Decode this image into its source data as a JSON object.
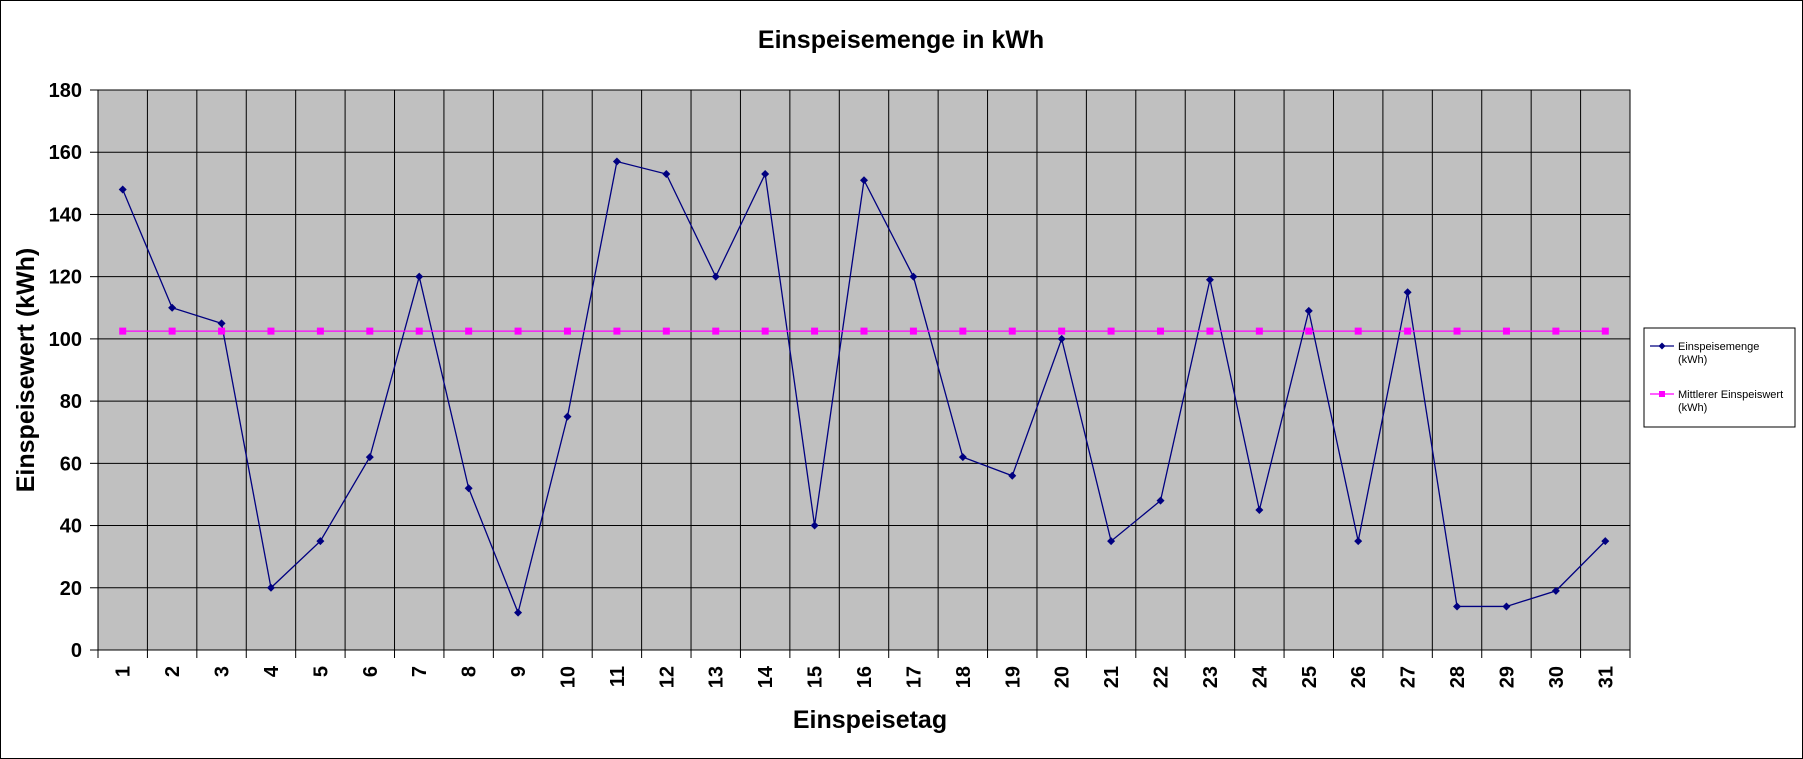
{
  "chart_data": {
    "type": "line",
    "title": "Einspeisemenge in kWh",
    "xlabel": "Einspeisetag",
    "ylabel": "Einspeisewert  (kWh)",
    "ylim": [
      0,
      180
    ],
    "yticks": [
      0,
      20,
      40,
      60,
      80,
      100,
      120,
      140,
      160,
      180
    ],
    "categories": [
      "1",
      "2",
      "3",
      "4",
      "5",
      "6",
      "7",
      "8",
      "9",
      "10",
      "11",
      "12",
      "13",
      "14",
      "15",
      "16",
      "17",
      "18",
      "19",
      "20",
      "21",
      "22",
      "23",
      "24",
      "25",
      "26",
      "27",
      "28",
      "29",
      "30",
      "31"
    ],
    "grid": true,
    "plot_background": "#c0c0c0",
    "legend_position": "right",
    "series": [
      {
        "name": "Einspeisemenge (kWh)",
        "legend_lines": [
          "Einspeisemenge",
          "(kWh)"
        ],
        "color": "#000080",
        "marker": "diamond",
        "values": [
          148,
          110,
          105,
          20,
          35,
          62,
          120,
          52,
          12,
          75,
          157,
          153,
          120,
          153,
          40,
          151,
          120,
          62,
          56,
          100,
          35,
          48,
          119,
          45,
          109,
          35,
          115,
          14,
          14,
          19,
          35
        ]
      },
      {
        "name": "Mittlerer Einspeiswert (kWh)",
        "legend_lines": [
          "Mittlerer Einspeiswert",
          "(kWh)"
        ],
        "color": "#ff00ff",
        "marker": "square",
        "values": [
          102.5,
          102.5,
          102.5,
          102.5,
          102.5,
          102.5,
          102.5,
          102.5,
          102.5,
          102.5,
          102.5,
          102.5,
          102.5,
          102.5,
          102.5,
          102.5,
          102.5,
          102.5,
          102.5,
          102.5,
          102.5,
          102.5,
          102.5,
          102.5,
          102.5,
          102.5,
          102.5,
          102.5,
          102.5,
          102.5,
          102.5
        ]
      }
    ]
  }
}
